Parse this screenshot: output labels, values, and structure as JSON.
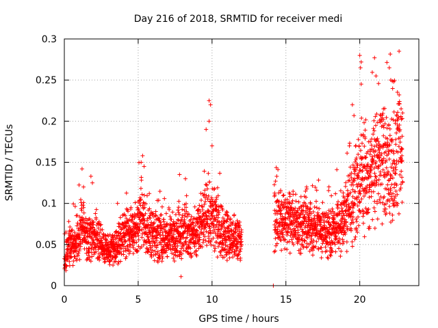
{
  "chart_data": {
    "type": "scatter",
    "title": "Day 216 of 2018, SRMTID for receiver medi",
    "xlabel": "GPS time / hours",
    "ylabel": "SRMTID / TECUs",
    "xlim": [
      0,
      24
    ],
    "ylim": [
      0,
      0.3
    ],
    "x_ticks": [
      0,
      5,
      10,
      15,
      20
    ],
    "x_tick_labels": [
      "0",
      "5",
      "10",
      "15",
      "20"
    ],
    "y_ticks": [
      0,
      0.05,
      0.1,
      0.15,
      0.2,
      0.25,
      0.3
    ],
    "y_tick_labels": [
      "0",
      "0.05",
      "0.1",
      "0.15",
      "0.2",
      "0.25",
      "0.3"
    ],
    "grid": true,
    "marker": "+",
    "color": "#ff0000",
    "data_gap": [
      12.0,
      14.2
    ],
    "series": [
      {
        "name": "SRMTID",
        "segments": [
          {
            "x_start": 0.0,
            "x_end": 12.0,
            "points_per_hour": 140
          },
          {
            "x_start": 14.2,
            "x_end": 22.9,
            "points_per_hour": 140
          }
        ],
        "trend": [
          [
            0.0,
            0.03
          ],
          [
            0.3,
            0.045
          ],
          [
            1.0,
            0.06
          ],
          [
            1.2,
            0.08
          ],
          [
            1.5,
            0.06
          ],
          [
            2.0,
            0.06
          ],
          [
            3.0,
            0.04
          ],
          [
            3.5,
            0.045
          ],
          [
            4.0,
            0.06
          ],
          [
            5.0,
            0.07
          ],
          [
            5.2,
            0.09
          ],
          [
            5.5,
            0.07
          ],
          [
            6.0,
            0.06
          ],
          [
            7.0,
            0.055
          ],
          [
            8.0,
            0.065
          ],
          [
            9.0,
            0.06
          ],
          [
            9.7,
            0.09
          ],
          [
            10.0,
            0.08
          ],
          [
            11.0,
            0.06
          ],
          [
            12.0,
            0.055
          ],
          [
            14.2,
            0.075
          ],
          [
            15.0,
            0.08
          ],
          [
            16.0,
            0.075
          ],
          [
            17.0,
            0.07
          ],
          [
            18.0,
            0.065
          ],
          [
            19.0,
            0.08
          ],
          [
            19.5,
            0.1
          ],
          [
            20.0,
            0.13
          ],
          [
            20.5,
            0.12
          ],
          [
            21.0,
            0.14
          ],
          [
            21.5,
            0.15
          ],
          [
            22.0,
            0.14
          ],
          [
            22.5,
            0.15
          ],
          [
            22.9,
            0.16
          ]
        ],
        "outliers": [
          [
            0.3,
            0.078
          ],
          [
            1.2,
            0.142
          ],
          [
            1.3,
            0.12
          ],
          [
            1.8,
            0.133
          ],
          [
            1.9,
            0.125
          ],
          [
            3.6,
            0.1
          ],
          [
            5.3,
            0.158
          ],
          [
            5.2,
            0.15
          ],
          [
            5.4,
            0.145
          ],
          [
            7.8,
            0.135
          ],
          [
            7.9,
            0.011
          ],
          [
            8.2,
            0.13
          ],
          [
            9.6,
            0.19
          ],
          [
            9.8,
            0.225
          ],
          [
            9.9,
            0.22
          ],
          [
            9.8,
            0.2
          ],
          [
            10.0,
            0.17
          ],
          [
            14.15,
            0.0
          ],
          [
            14.3,
            0.127
          ],
          [
            16.4,
            0.12
          ],
          [
            19.5,
            0.22
          ],
          [
            20.0,
            0.28
          ],
          [
            20.1,
            0.272
          ],
          [
            20.05,
            0.265
          ],
          [
            20.1,
            0.245
          ],
          [
            21.0,
            0.277
          ],
          [
            21.1,
            0.255
          ],
          [
            21.6,
            0.215
          ],
          [
            22.0,
            0.265
          ],
          [
            22.1,
            0.25
          ],
          [
            22.3,
            0.248
          ],
          [
            22.8,
            0.215
          ],
          [
            22.9,
            0.21
          ]
        ]
      }
    ]
  }
}
